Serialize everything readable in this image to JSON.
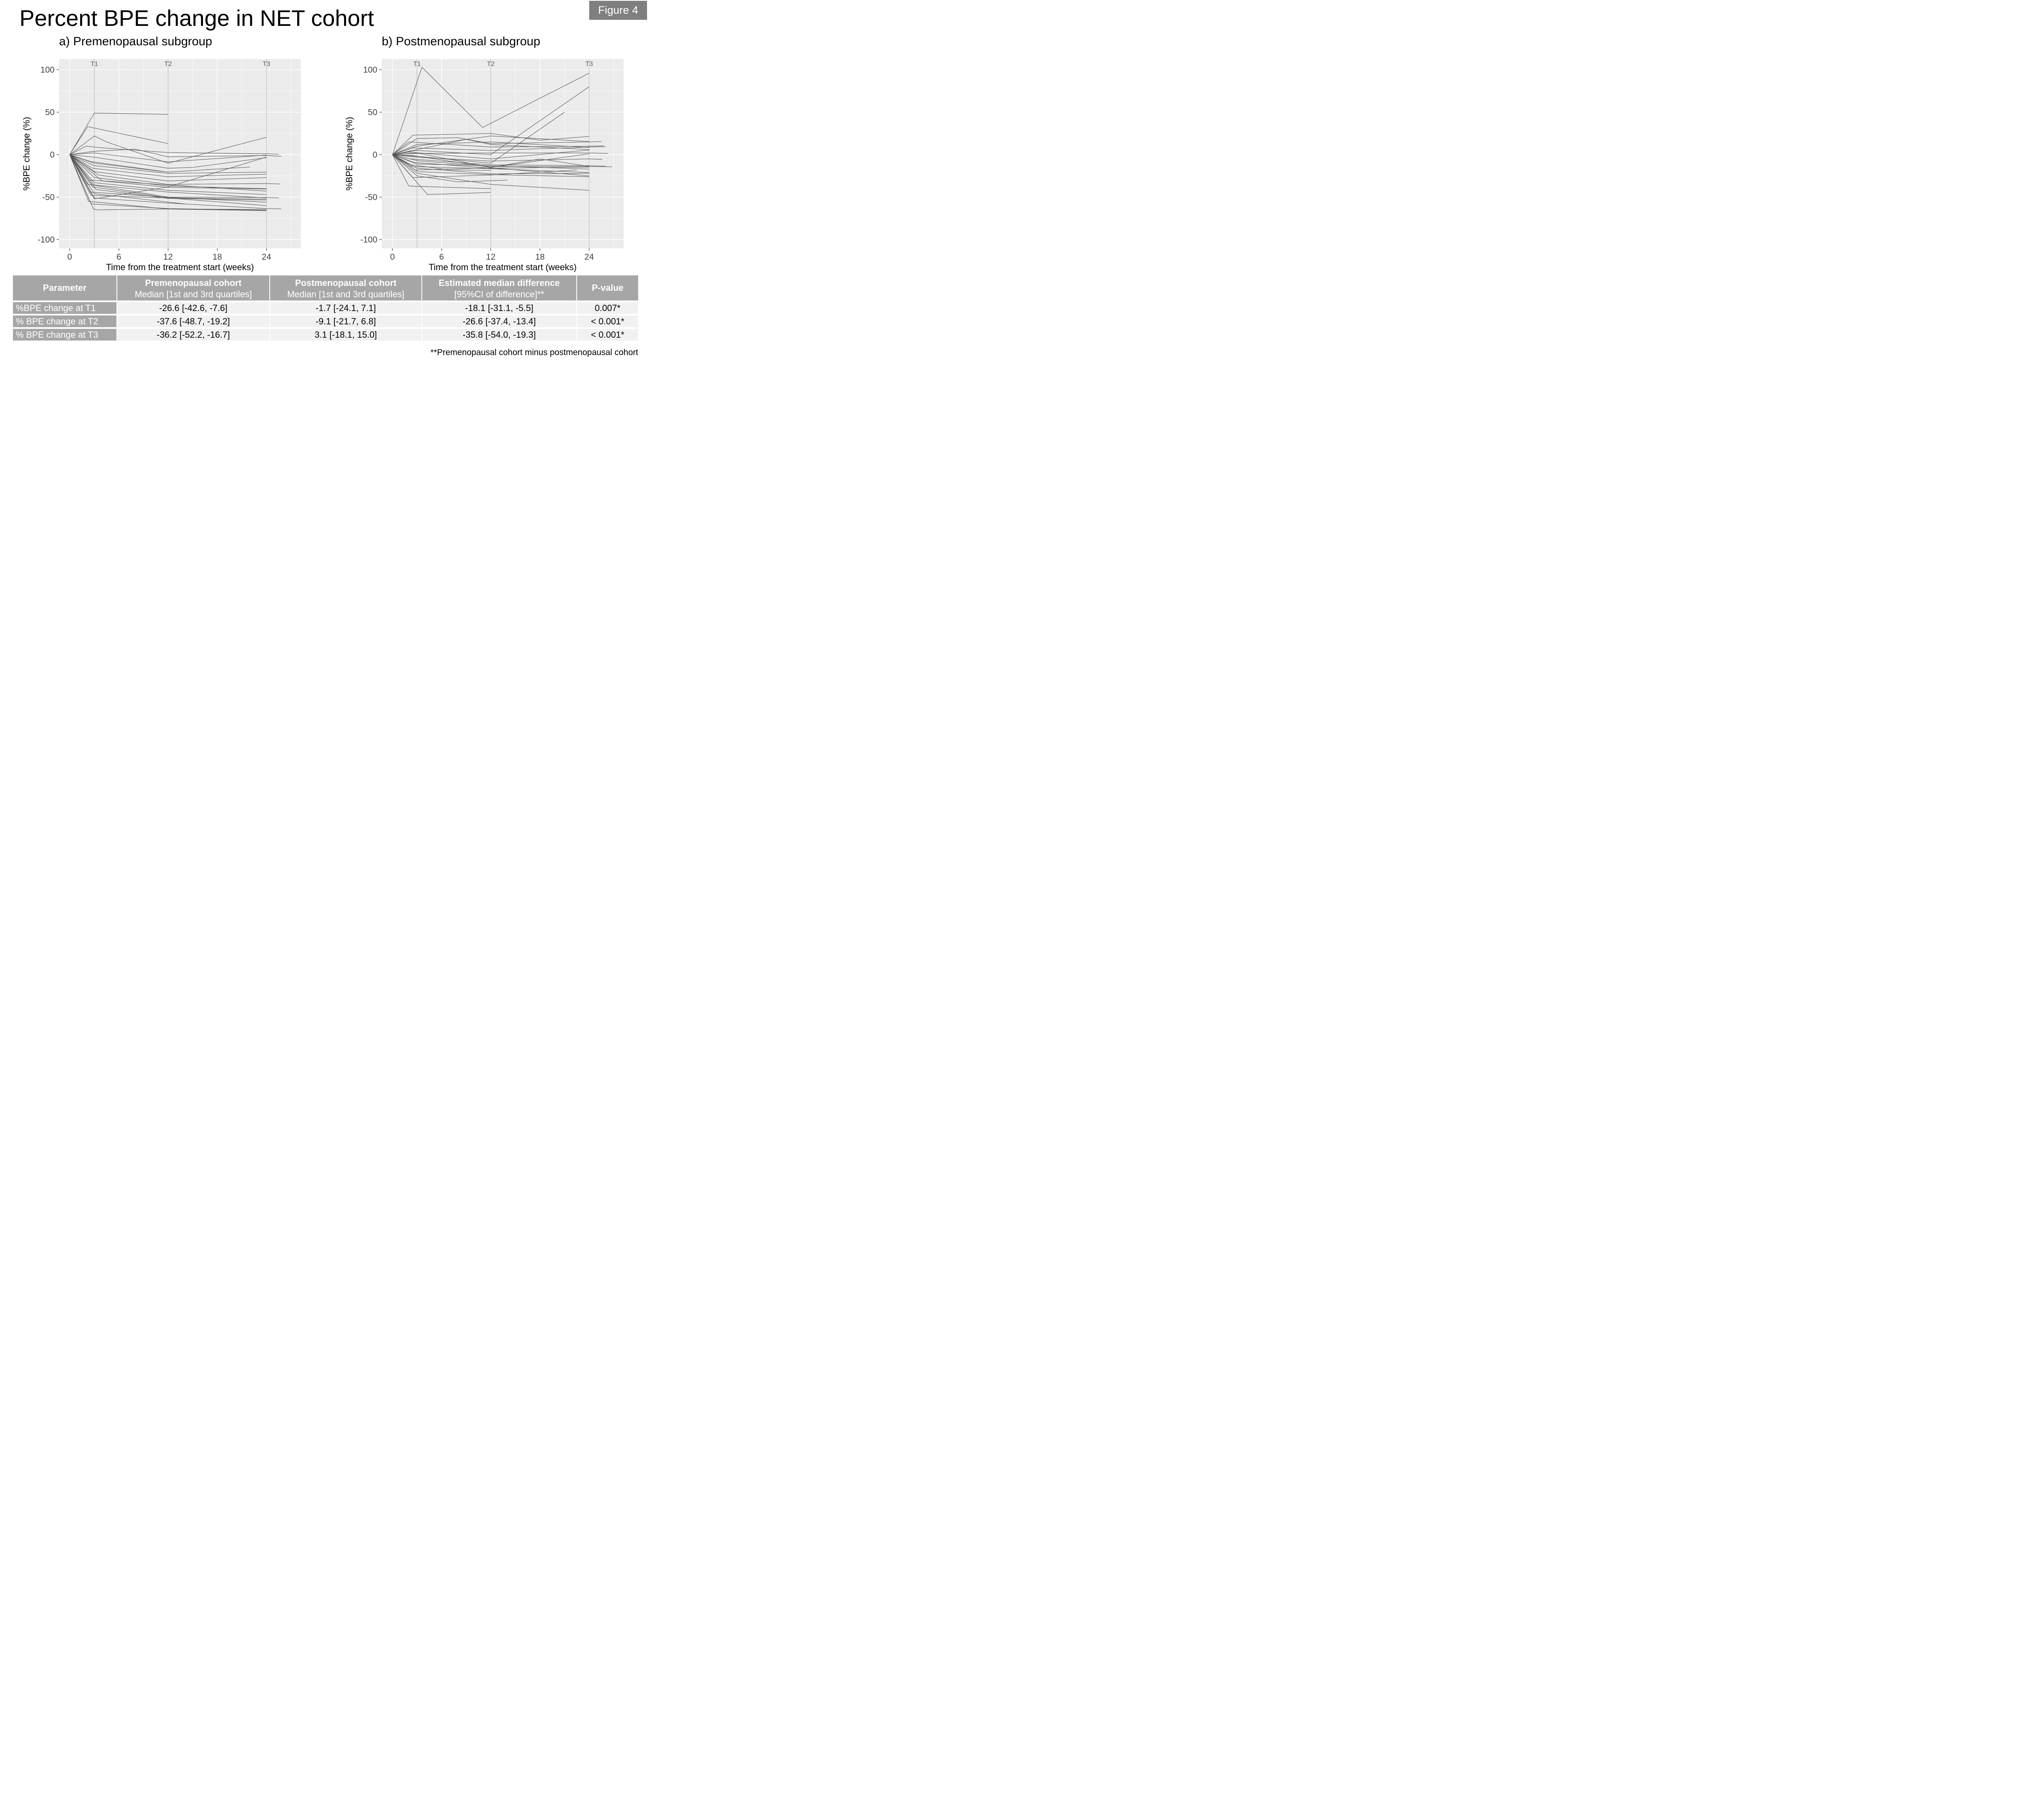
{
  "page": {
    "title": "Percent BPE change in NET cohort",
    "figure_label": "Figure 4",
    "footnote": "**Premenopausal cohort minus postmenopausal cohort"
  },
  "colors": {
    "line": "#545454",
    "panel_bg": "#ebebeb",
    "grid": "#ffffff",
    "timepoint_line": "#b4b4b4",
    "tick_mark": "#333333",
    "tick_text": "#404040",
    "timepoint_text": "#5c5c5c",
    "header_bg": "#a6a6a6",
    "cell_bg": "#f1f1f1",
    "badge_bg": "#7f7f7f",
    "header_text": "#ffffff"
  },
  "chart_data": [
    {
      "type": "line",
      "title": "a) Premenopausal subgroup",
      "xlabel": "Time from the treatment start (weeks)",
      "ylabel": "%BPE change (%)",
      "xlim": [
        -1.3,
        28.2
      ],
      "ylim": [
        -110.3,
        112.6
      ],
      "xticks": [
        0,
        6,
        12,
        18,
        24
      ],
      "yticks": [
        -100,
        -50,
        0,
        50,
        100
      ],
      "x_minor": [
        3,
        9,
        15,
        21,
        27
      ],
      "y_minor": [
        -75,
        -25,
        25,
        75
      ],
      "grid": true,
      "legend": "none",
      "timepoints": [
        {
          "label": "T1",
          "x": 3
        },
        {
          "label": "T2",
          "x": 12
        },
        {
          "label": "T3",
          "x": 24
        }
      ],
      "series": [
        [
          [
            0,
            0
          ],
          [
            3,
            49
          ],
          [
            12,
            47.5
          ]
        ],
        [
          [
            0,
            0
          ],
          [
            2.2,
            33
          ],
          [
            12,
            13
          ]
        ],
        [
          [
            0,
            0
          ],
          [
            3,
            22
          ],
          [
            4.5,
            15
          ],
          [
            12,
            -10
          ],
          [
            24,
            20.5
          ]
        ],
        [
          [
            0,
            0
          ],
          [
            2,
            10
          ],
          [
            4,
            8
          ],
          [
            12,
            2.5
          ],
          [
            24,
            1
          ],
          [
            25.5,
            0.5
          ]
        ],
        [
          [
            0,
            0
          ],
          [
            3,
            4
          ],
          [
            8,
            6.5
          ],
          [
            12,
            -2.5
          ],
          [
            24,
            -1
          ],
          [
            25.8,
            -2
          ]
        ],
        [
          [
            0,
            0
          ],
          [
            3,
            2
          ],
          [
            12,
            -8.5
          ],
          [
            24,
            -0.5
          ]
        ],
        [
          [
            0,
            0
          ],
          [
            3,
            -3
          ],
          [
            12,
            -16
          ],
          [
            15,
            -15
          ],
          [
            24,
            -3.5
          ]
        ],
        [
          [
            0,
            0
          ],
          [
            2.5,
            -8
          ],
          [
            12,
            -20.5
          ],
          [
            22,
            -14.5
          ]
        ],
        [
          [
            0,
            0
          ],
          [
            3,
            -10
          ],
          [
            11.5,
            -20
          ]
        ],
        [
          [
            0,
            0
          ],
          [
            3,
            -13
          ],
          [
            12,
            -22
          ],
          [
            24,
            -20.5
          ]
        ],
        [
          [
            0,
            0
          ],
          [
            2.8,
            -16
          ],
          [
            12,
            -26
          ],
          [
            24,
            -23
          ]
        ],
        [
          [
            0,
            0
          ],
          [
            3,
            -20
          ],
          [
            12,
            -31
          ],
          [
            24,
            -27
          ]
        ],
        [
          [
            0,
            0
          ],
          [
            3.5,
            -24
          ],
          [
            12,
            -35
          ],
          [
            24,
            -34
          ],
          [
            25.7,
            -34.5
          ]
        ],
        [
          [
            0,
            0
          ],
          [
            3,
            -27
          ],
          [
            12,
            -37
          ],
          [
            24,
            -40
          ]
        ],
        [
          [
            0,
            0
          ],
          [
            2.5,
            -30
          ],
          [
            12,
            -35.5
          ],
          [
            24,
            -43
          ]
        ],
        [
          [
            0,
            0
          ],
          [
            4,
            -31
          ],
          [
            12,
            -38.5
          ],
          [
            24,
            -40.5
          ]
        ],
        [
          [
            0,
            0
          ],
          [
            3,
            -33
          ],
          [
            12,
            -42
          ],
          [
            24,
            -47
          ]
        ],
        [
          [
            0,
            0
          ],
          [
            2.2,
            -35
          ],
          [
            12,
            -44
          ],
          [
            24,
            -51
          ]
        ],
        [
          [
            0,
            0
          ],
          [
            3,
            -36
          ],
          [
            12,
            -50
          ],
          [
            24,
            -50.5
          ],
          [
            25.5,
            -51
          ]
        ],
        [
          [
            0,
            0
          ],
          [
            2.8,
            -38
          ],
          [
            12,
            -50.8
          ],
          [
            24,
            -52.5
          ]
        ],
        [
          [
            0,
            0
          ],
          [
            3.2,
            -41
          ],
          [
            12,
            -51.5
          ],
          [
            24,
            -53.5
          ]
        ],
        [
          [
            0,
            0
          ],
          [
            2.4,
            -44
          ],
          [
            12,
            -50.2
          ],
          [
            24,
            -56
          ]
        ],
        [
          [
            0,
            0
          ],
          [
            3,
            -46
          ],
          [
            14,
            -58
          ]
        ],
        [
          [
            0,
            0
          ],
          [
            2.6,
            -48
          ],
          [
            12,
            -51
          ],
          [
            24,
            -60
          ]
        ],
        [
          [
            0,
            0
          ],
          [
            3,
            -51
          ],
          [
            12,
            -57
          ],
          [
            24,
            -63.5
          ],
          [
            25.8,
            -63.8
          ]
        ],
        [
          [
            0,
            0
          ],
          [
            2.3,
            -55
          ],
          [
            12,
            -64
          ],
          [
            24,
            -64.5
          ]
        ],
        [
          [
            0,
            0
          ],
          [
            2.6,
            -58
          ],
          [
            12,
            -63.5
          ],
          [
            24,
            -65.5
          ]
        ],
        [
          [
            0,
            0
          ],
          [
            2.9,
            -64
          ],
          [
            3.4,
            -65
          ],
          [
            12,
            -64
          ],
          [
            24,
            -66
          ]
        ],
        [
          [
            0,
            0
          ],
          [
            3,
            -52
          ],
          [
            12,
            -38
          ],
          [
            24,
            -2.8
          ]
        ]
      ]
    },
    {
      "type": "line",
      "title": "b) Postmenopausal subgroup",
      "xlabel": "Time from the treatment start (weeks)",
      "ylabel": "%BPE change (%)",
      "xlim": [
        -1.3,
        28.2
      ],
      "ylim": [
        -110.3,
        112.6
      ],
      "xticks": [
        0,
        6,
        12,
        18,
        24
      ],
      "yticks": [
        -100,
        -50,
        0,
        50,
        100
      ],
      "x_minor": [
        3,
        9,
        15,
        21,
        27
      ],
      "y_minor": [
        -75,
        -25,
        25,
        75
      ],
      "grid": true,
      "legend": "none",
      "timepoints": [
        {
          "label": "T1",
          "x": 3
        },
        {
          "label": "T2",
          "x": 12
        },
        {
          "label": "T3",
          "x": 24
        }
      ],
      "series": [
        [
          [
            0,
            0
          ],
          [
            3.6,
            103
          ],
          [
            11,
            32
          ],
          [
            24,
            96
          ]
        ],
        [
          [
            0,
            0
          ],
          [
            3,
            5
          ],
          [
            12,
            0
          ],
          [
            24,
            80
          ]
        ],
        [
          [
            0,
            0
          ],
          [
            3,
            -2
          ],
          [
            12,
            -10
          ],
          [
            21,
            50
          ]
        ],
        [
          [
            0,
            0
          ],
          [
            2.5,
            23
          ],
          [
            12,
            25
          ],
          [
            18,
            17
          ],
          [
            24,
            21.5
          ]
        ],
        [
          [
            0,
            0
          ],
          [
            3,
            19
          ],
          [
            8,
            20
          ],
          [
            12,
            13
          ],
          [
            24,
            15
          ],
          [
            25.5,
            15.5
          ]
        ],
        [
          [
            0,
            0
          ],
          [
            2,
            15
          ],
          [
            12,
            9
          ],
          [
            24,
            10
          ],
          [
            25.8,
            10.5
          ]
        ],
        [
          [
            0,
            0
          ],
          [
            3,
            12
          ],
          [
            12,
            15
          ],
          [
            24,
            8.5
          ]
        ],
        [
          [
            0,
            0
          ],
          [
            2.5,
            8
          ],
          [
            12,
            5
          ],
          [
            24,
            9
          ],
          [
            26,
            9.5
          ]
        ],
        [
          [
            0,
            0
          ],
          [
            3,
            6
          ],
          [
            9,
            18
          ],
          [
            12,
            12
          ],
          [
            24,
            6
          ]
        ],
        [
          [
            0,
            0
          ],
          [
            2,
            3
          ],
          [
            12,
            -5
          ],
          [
            24,
            5.5
          ]
        ],
        [
          [
            0,
            0
          ],
          [
            3,
            1.5
          ],
          [
            12,
            2
          ],
          [
            24,
            2
          ],
          [
            26.3,
            1.5
          ]
        ],
        [
          [
            0,
            0
          ],
          [
            2.5,
            -1
          ],
          [
            12,
            -15
          ],
          [
            24,
            1
          ]
        ],
        [
          [
            0,
            0
          ],
          [
            3,
            -3
          ],
          [
            12,
            -7.5
          ],
          [
            24,
            -5
          ],
          [
            25.6,
            -5.5
          ]
        ],
        [
          [
            0,
            0
          ],
          [
            2.2,
            -5
          ],
          [
            12,
            -12
          ],
          [
            24,
            -13
          ],
          [
            26,
            -13.5
          ]
        ],
        [
          [
            0,
            0
          ],
          [
            3,
            -7
          ],
          [
            12,
            -14
          ],
          [
            24,
            -14
          ],
          [
            26.8,
            -14.3
          ]
        ],
        [
          [
            0,
            0
          ],
          [
            2.6,
            -9
          ],
          [
            12,
            -16
          ],
          [
            24,
            -14.5
          ]
        ],
        [
          [
            0,
            0
          ],
          [
            3,
            -11
          ],
          [
            12,
            -13
          ],
          [
            24,
            -17
          ]
        ],
        [
          [
            0,
            0
          ],
          [
            2.4,
            -14
          ],
          [
            12,
            -16.5
          ],
          [
            24,
            -21
          ]
        ],
        [
          [
            0,
            0
          ],
          [
            3,
            -16
          ],
          [
            12,
            -22.5
          ],
          [
            24,
            -22
          ]
        ],
        [
          [
            0,
            0
          ],
          [
            2.8,
            -18
          ],
          [
            12,
            -15.5
          ],
          [
            24,
            -25
          ]
        ],
        [
          [
            0,
            0
          ],
          [
            3.1,
            -20
          ],
          [
            12,
            -23.5
          ],
          [
            24,
            -26
          ]
        ],
        [
          [
            0,
            0
          ],
          [
            2.5,
            -27
          ],
          [
            12,
            -24
          ],
          [
            22.5,
            -18
          ]
        ],
        [
          [
            0,
            0
          ],
          [
            3,
            -25
          ],
          [
            8,
            -32
          ],
          [
            14,
            -30
          ]
        ],
        [
          [
            0,
            0
          ],
          [
            2,
            -37
          ],
          [
            12,
            -40
          ]
        ],
        [
          [
            0,
            0
          ],
          [
            4.3,
            -47
          ],
          [
            12,
            -44.5
          ]
        ],
        [
          [
            0,
            0
          ],
          [
            3,
            -22
          ],
          [
            12,
            -35
          ],
          [
            24,
            -42
          ]
        ],
        [
          [
            0,
            0
          ],
          [
            3,
            10
          ],
          [
            12,
            22
          ],
          [
            24,
            15.5
          ]
        ],
        [
          [
            0,
            0
          ],
          [
            2.3,
            -12
          ],
          [
            7,
            -18
          ],
          [
            12,
            -18.5
          ]
        ],
        [
          [
            0,
            0
          ],
          [
            3,
            2
          ],
          [
            12,
            -15
          ],
          [
            18,
            -5
          ],
          [
            24,
            -13.8
          ]
        ]
      ]
    }
  ],
  "table": {
    "columns": [
      {
        "title": "Parameter",
        "subtitle": ""
      },
      {
        "title": "Premenopausal cohort",
        "subtitle": "Median [1st and 3rd quartiles]"
      },
      {
        "title": "Postmenopausal cohort",
        "subtitle": "Median [1st and 3rd quartiles]"
      },
      {
        "title": "Estimated median difference",
        "subtitle": "[95%CI of difference]**"
      },
      {
        "title": "P-value",
        "subtitle": ""
      }
    ],
    "rows": [
      {
        "parameter": "%BPE change at T1",
        "pre": "-26.6 [-42.6, -7.6]",
        "post": "-1.7 [-24.1, 7.1]",
        "diff": "-18.1 [-31.1, -5.5]",
        "p": "0.007*"
      },
      {
        "parameter": "% BPE change at T2",
        "pre": "-37.6 [-48.7, -19.2]",
        "post": "-9.1 [-21.7, 6.8]",
        "diff": "-26.6 [-37.4, -13.4]",
        "p": "< 0.001*"
      },
      {
        "parameter": "% BPE change at T3",
        "pre": "-36.2 [-52.2, -16.7]",
        "post": "3.1 [-18.1, 15.0]",
        "diff": "-35.8 [-54.0, -19.3]",
        "p": "< 0.001*"
      }
    ]
  }
}
